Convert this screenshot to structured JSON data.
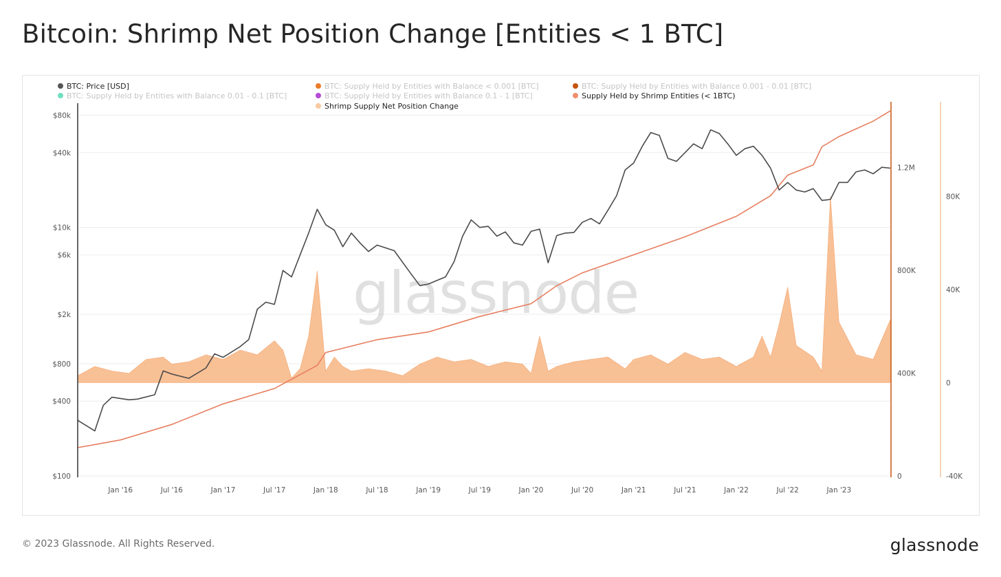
{
  "title": "Bitcoin: Shrimp Net Position Change [Entities < 1 BTC]",
  "footer": {
    "copyright": "© 2023 Glassnode. All Rights Reserved.",
    "logo_text": "glassnode"
  },
  "watermark": "glassnode",
  "chart_data": {
    "type": "line",
    "title": "Bitcoin: Shrimp Net Position Change [Entities < 1 BTC]",
    "legend": [
      {
        "label": "BTC: Price [USD]",
        "color": "#555555",
        "active": true
      },
      {
        "label": "BTC: Supply Held by Entities with Balance < 0.001 [BTC]",
        "color": "#ea7b2a",
        "active": false
      },
      {
        "label": "BTC: Supply Held by Entities with Balance 0.001 - 0.01 [BTC]",
        "color": "#c5540e",
        "active": false
      },
      {
        "label": "BTC: Supply Held by Entities with Balance 0.01 - 0.1 [BTC]",
        "color": "#6fe0bf",
        "active": false
      },
      {
        "label": "BTC: Supply Held by Entities with Balance 0.1 - 1 [BTC]",
        "color": "#b44bd6",
        "active": false
      },
      {
        "label": "Supply Held by Shrimp Entities (< 1BTC)",
        "color": "#ef8f6e",
        "active": true
      },
      {
        "label": "Shrimp Supply Net Position Change",
        "color": "#f8c9a1",
        "active": true
      }
    ],
    "x_ticks": [
      "Jan '16",
      "Jul '16",
      "Jan '17",
      "Jul '17",
      "Jan '18",
      "Jul '18",
      "Jan '19",
      "Jul '19",
      "Jan '20",
      "Jul '20",
      "Jan '21",
      "Jul '21",
      "Jan '22",
      "Jul '22",
      "Jan '23"
    ],
    "x_range": [
      "2015-08",
      "2023-07"
    ],
    "y_left": {
      "scale": "log",
      "range": [
        100,
        100000
      ],
      "ticks": [
        "$80k",
        "$40k",
        "$10k",
        "$6k",
        "$2k",
        "$800",
        "$400",
        "$100"
      ]
    },
    "y_right1": {
      "range": [
        0,
        1450000
      ],
      "ticks": [
        "1.2M",
        "800K",
        "400K",
        "0"
      ]
    },
    "y_right2": {
      "range": [
        -40000,
        120000
      ],
      "ticks": [
        "80K",
        "40K",
        "0",
        "-40K"
      ]
    },
    "series": [
      {
        "name": "BTC: Price [USD]",
        "color": "#555555",
        "x": [
          "2015-08",
          "2015-10",
          "2015-11",
          "2015-12",
          "2016-01",
          "2016-02",
          "2016-03",
          "2016-05",
          "2016-06",
          "2016-07",
          "2016-09",
          "2016-11",
          "2016-12",
          "2017-01",
          "2017-03",
          "2017-04",
          "2017-05",
          "2017-06",
          "2017-07",
          "2017-08",
          "2017-09",
          "2017-10",
          "2017-11",
          "2017-12",
          "2018-01",
          "2018-02",
          "2018-03",
          "2018-04",
          "2018-05",
          "2018-06",
          "2018-07",
          "2018-09",
          "2018-11",
          "2018-12",
          "2019-01",
          "2019-03",
          "2019-04",
          "2019-05",
          "2019-06",
          "2019-07",
          "2019-08",
          "2019-09",
          "2019-10",
          "2019-11",
          "2019-12",
          "2020-01",
          "2020-02",
          "2020-03",
          "2020-04",
          "2020-05",
          "2020-06",
          "2020-07",
          "2020-08",
          "2020-09",
          "2020-10",
          "2020-11",
          "2020-12",
          "2021-01",
          "2021-02",
          "2021-03",
          "2021-04",
          "2021-05",
          "2021-06",
          "2021-07",
          "2021-08",
          "2021-09",
          "2021-10",
          "2021-11",
          "2021-12",
          "2022-01",
          "2022-02",
          "2022-03",
          "2022-04",
          "2022-05",
          "2022-06",
          "2022-07",
          "2022-08",
          "2022-09",
          "2022-10",
          "2022-11",
          "2022-12",
          "2023-01",
          "2023-02",
          "2023-03",
          "2023-04",
          "2023-05",
          "2023-06",
          "2023-07"
        ],
        "y": [
          280,
          230,
          370,
          430,
          420,
          410,
          415,
          450,
          700,
          660,
          610,
          740,
          960,
          900,
          1100,
          1250,
          2200,
          2500,
          2400,
          4500,
          4000,
          6000,
          9000,
          14000,
          10500,
          9500,
          7000,
          9000,
          7500,
          6400,
          7200,
          6500,
          4200,
          3400,
          3500,
          4000,
          5300,
          8500,
          11500,
          10000,
          10200,
          8500,
          9200,
          7500,
          7200,
          9300,
          9700,
          5200,
          8600,
          9000,
          9100,
          11000,
          11800,
          10700,
          13800,
          18000,
          29000,
          33000,
          45000,
          58000,
          55000,
          36000,
          34000,
          40000,
          47000,
          43000,
          61000,
          57000,
          47000,
          38000,
          43000,
          45000,
          38000,
          30000,
          20000,
          23000,
          20000,
          19300,
          20500,
          16500,
          16800,
          23000,
          23000,
          28000,
          29000,
          27000,
          30500,
          30000
        ]
      },
      {
        "name": "Supply Held by Shrimp Entities (< 1BTC)",
        "color": "#e77e5f",
        "x": [
          "2015-08",
          "2016-01",
          "2016-07",
          "2017-01",
          "2017-07",
          "2017-12",
          "2018-01",
          "2018-07",
          "2019-01",
          "2019-07",
          "2020-01",
          "2020-04",
          "2020-07",
          "2021-01",
          "2021-07",
          "2022-01",
          "2022-05",
          "2022-07",
          "2022-10",
          "2022-11",
          "2023-01",
          "2023-03",
          "2023-05",
          "2023-07"
        ],
        "y": [
          110000,
          140000,
          200000,
          280000,
          340000,
          430000,
          480000,
          530000,
          560000,
          620000,
          670000,
          740000,
          790000,
          860000,
          930000,
          1010000,
          1090000,
          1170000,
          1210000,
          1280000,
          1320000,
          1350000,
          1380000,
          1420000
        ]
      },
      {
        "name": "Shrimp Supply Net Position Change",
        "color": "#f8c9a1",
        "x": [
          "2015-08",
          "2015-10",
          "2015-12",
          "2016-02",
          "2016-04",
          "2016-06",
          "2016-07",
          "2016-09",
          "2016-11",
          "2017-01",
          "2017-03",
          "2017-05",
          "2017-07",
          "2017-08",
          "2017-09",
          "2017-10",
          "2017-11",
          "2017-12",
          "2018-01",
          "2018-02",
          "2018-03",
          "2018-04",
          "2018-06",
          "2018-08",
          "2018-10",
          "2018-12",
          "2019-02",
          "2019-04",
          "2019-06",
          "2019-08",
          "2019-10",
          "2019-12",
          "2020-01",
          "2020-02",
          "2020-03",
          "2020-04",
          "2020-06",
          "2020-08",
          "2020-10",
          "2020-12",
          "2021-01",
          "2021-03",
          "2021-05",
          "2021-07",
          "2021-09",
          "2021-11",
          "2022-01",
          "2022-03",
          "2022-04",
          "2022-05",
          "2022-06",
          "2022-07",
          "2022-08",
          "2022-10",
          "2022-11",
          "2022-12",
          "2023-01",
          "2023-03",
          "2023-05",
          "2023-07"
        ],
        "y": [
          3000,
          7000,
          5000,
          4000,
          10000,
          11000,
          8000,
          9000,
          12000,
          10000,
          14000,
          12000,
          18000,
          14000,
          2000,
          6000,
          20000,
          48000,
          5000,
          11000,
          7000,
          5000,
          6000,
          5000,
          3000,
          8000,
          11000,
          9000,
          10000,
          7000,
          9000,
          8000,
          4000,
          20000,
          5000,
          7000,
          9000,
          10000,
          11000,
          6000,
          10000,
          12000,
          8000,
          13000,
          10000,
          11000,
          7000,
          11000,
          20000,
          11000,
          25000,
          41000,
          16000,
          11000,
          5000,
          80000,
          26000,
          12000,
          10000,
          27000
        ]
      }
    ]
  }
}
